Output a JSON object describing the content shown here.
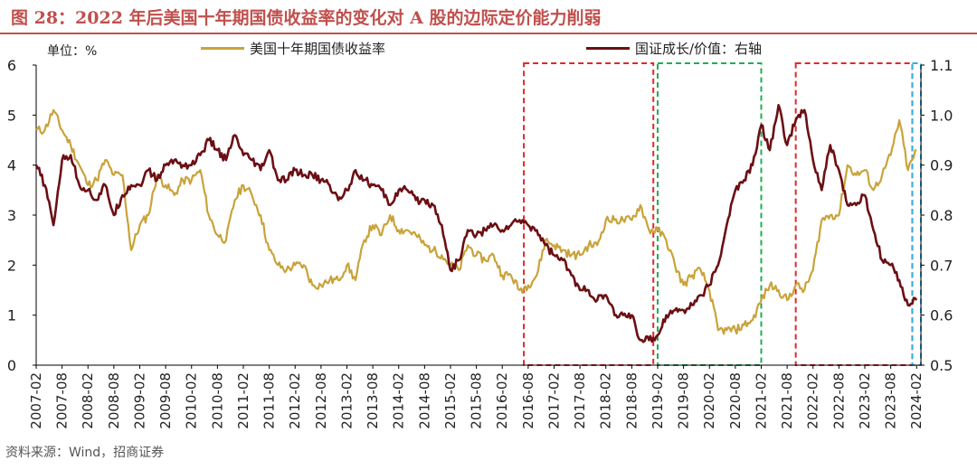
{
  "figure": {
    "title": "图 28：2022 年后美国十年期国债收益率的变化对 A 股的边际定价能力削弱",
    "unit": "单位：%",
    "source": "资料来源：Wind，招商证券"
  },
  "chart_data": {
    "type": "line",
    "x_ticks": [
      "2007-02",
      "2007-08",
      "2008-02",
      "2008-08",
      "2009-02",
      "2009-08",
      "2010-02",
      "2010-08",
      "2011-02",
      "2011-08",
      "2012-02",
      "2012-08",
      "2013-02",
      "2013-08",
      "2014-02",
      "2014-08",
      "2015-02",
      "2015-08",
      "2016-02",
      "2016-08",
      "2017-02",
      "2017-08",
      "2018-02",
      "2018-08",
      "2019-02",
      "2019-08",
      "2020-02",
      "2020-08",
      "2021-02",
      "2021-08",
      "2022-02",
      "2022-08",
      "2023-02",
      "2023-08",
      "2024-02"
    ],
    "y_left": {
      "range": [
        0,
        6
      ],
      "ticks": [
        0,
        1,
        2,
        3,
        4,
        5,
        6
      ]
    },
    "y_right": {
      "range": [
        0.5,
        1.1
      ],
      "ticks": [
        0.5,
        0.6,
        0.7,
        0.8,
        0.9,
        1.0,
        1.1
      ],
      "tick_labels": [
        "0.5",
        "0.6",
        "0.7",
        "0.8",
        "0.9",
        "1.0",
        "1.1"
      ]
    },
    "series": [
      {
        "name": "美国十年期国债收益率",
        "axis": "left",
        "color": "#c9a33a",
        "points": [
          [
            "2007-02",
            4.7
          ],
          [
            "2007-04",
            4.7
          ],
          [
            "2007-06",
            5.1
          ],
          [
            "2007-08",
            4.7
          ],
          [
            "2007-10",
            4.4
          ],
          [
            "2007-12",
            4.0
          ],
          [
            "2008-02",
            3.6
          ],
          [
            "2008-04",
            3.7
          ],
          [
            "2008-06",
            4.1
          ],
          [
            "2008-08",
            3.8
          ],
          [
            "2008-10",
            3.8
          ],
          [
            "2008-12",
            2.3
          ],
          [
            "2009-02",
            2.8
          ],
          [
            "2009-04",
            3.0
          ],
          [
            "2009-06",
            3.8
          ],
          [
            "2009-08",
            3.6
          ],
          [
            "2009-10",
            3.4
          ],
          [
            "2009-12",
            3.7
          ],
          [
            "2010-02",
            3.7
          ],
          [
            "2010-04",
            3.9
          ],
          [
            "2010-06",
            3.0
          ],
          [
            "2010-08",
            2.6
          ],
          [
            "2010-10",
            2.5
          ],
          [
            "2010-12",
            3.3
          ],
          [
            "2011-02",
            3.6
          ],
          [
            "2011-04",
            3.4
          ],
          [
            "2011-06",
            3.0
          ],
          [
            "2011-08",
            2.3
          ],
          [
            "2011-10",
            2.0
          ],
          [
            "2011-12",
            1.9
          ],
          [
            "2012-02",
            2.0
          ],
          [
            "2012-04",
            2.0
          ],
          [
            "2012-06",
            1.6
          ],
          [
            "2012-08",
            1.6
          ],
          [
            "2012-10",
            1.7
          ],
          [
            "2012-12",
            1.7
          ],
          [
            "2013-02",
            2.0
          ],
          [
            "2013-04",
            1.7
          ],
          [
            "2013-06",
            2.5
          ],
          [
            "2013-08",
            2.8
          ],
          [
            "2013-10",
            2.6
          ],
          [
            "2013-12",
            3.0
          ],
          [
            "2014-02",
            2.7
          ],
          [
            "2014-04",
            2.7
          ],
          [
            "2014-06",
            2.6
          ],
          [
            "2014-08",
            2.4
          ],
          [
            "2014-10",
            2.3
          ],
          [
            "2014-12",
            2.2
          ],
          [
            "2015-02",
            2.0
          ],
          [
            "2015-04",
            1.9
          ],
          [
            "2015-06",
            2.4
          ],
          [
            "2015-08",
            2.2
          ],
          [
            "2015-10",
            2.1
          ],
          [
            "2015-12",
            2.2
          ],
          [
            "2016-02",
            1.8
          ],
          [
            "2016-04",
            1.8
          ],
          [
            "2016-06",
            1.5
          ],
          [
            "2016-08",
            1.6
          ],
          [
            "2016-10",
            1.8
          ],
          [
            "2016-12",
            2.5
          ],
          [
            "2017-02",
            2.4
          ],
          [
            "2017-04",
            2.3
          ],
          [
            "2017-06",
            2.2
          ],
          [
            "2017-08",
            2.2
          ],
          [
            "2017-10",
            2.4
          ],
          [
            "2017-12",
            2.4
          ],
          [
            "2018-02",
            2.9
          ],
          [
            "2018-04",
            2.9
          ],
          [
            "2018-06",
            2.9
          ],
          [
            "2018-08",
            2.9
          ],
          [
            "2018-10",
            3.2
          ],
          [
            "2018-12",
            2.7
          ],
          [
            "2019-02",
            2.7
          ],
          [
            "2019-04",
            2.5
          ],
          [
            "2019-06",
            2.0
          ],
          [
            "2019-08",
            1.6
          ],
          [
            "2019-10",
            1.8
          ],
          [
            "2019-12",
            1.9
          ],
          [
            "2020-02",
            1.5
          ],
          [
            "2020-04",
            0.7
          ],
          [
            "2020-06",
            0.7
          ],
          [
            "2020-08",
            0.7
          ],
          [
            "2020-10",
            0.8
          ],
          [
            "2020-12",
            0.9
          ],
          [
            "2021-02",
            1.3
          ],
          [
            "2021-04",
            1.6
          ],
          [
            "2021-06",
            1.5
          ],
          [
            "2021-08",
            1.3
          ],
          [
            "2021-10",
            1.6
          ],
          [
            "2021-12",
            1.5
          ],
          [
            "2022-02",
            1.9
          ],
          [
            "2022-04",
            2.9
          ],
          [
            "2022-06",
            3.0
          ],
          [
            "2022-08",
            3.0
          ],
          [
            "2022-10",
            4.0
          ],
          [
            "2022-12",
            3.8
          ],
          [
            "2023-02",
            3.9
          ],
          [
            "2023-04",
            3.5
          ],
          [
            "2023-06",
            3.8
          ],
          [
            "2023-08",
            4.2
          ],
          [
            "2023-10",
            4.9
          ],
          [
            "2023-12",
            3.9
          ],
          [
            "2024-02",
            4.3
          ]
        ]
      },
      {
        "name": "国证成长/价值：右轴",
        "axis": "right",
        "color": "#6b0f14",
        "points": [
          [
            "2007-02",
            0.9
          ],
          [
            "2007-04",
            0.86
          ],
          [
            "2007-06",
            0.78
          ],
          [
            "2007-08",
            0.91
          ],
          [
            "2007-10",
            0.92
          ],
          [
            "2007-12",
            0.86
          ],
          [
            "2008-02",
            0.85
          ],
          [
            "2008-04",
            0.83
          ],
          [
            "2008-06",
            0.86
          ],
          [
            "2008-08",
            0.8
          ],
          [
            "2008-10",
            0.84
          ],
          [
            "2008-12",
            0.86
          ],
          [
            "2009-02",
            0.86
          ],
          [
            "2009-04",
            0.89
          ],
          [
            "2009-06",
            0.87
          ],
          [
            "2009-08",
            0.9
          ],
          [
            "2009-10",
            0.91
          ],
          [
            "2009-12",
            0.9
          ],
          [
            "2010-02",
            0.9
          ],
          [
            "2010-04",
            0.92
          ],
          [
            "2010-06",
            0.95
          ],
          [
            "2010-08",
            0.93
          ],
          [
            "2010-10",
            0.91
          ],
          [
            "2010-12",
            0.96
          ],
          [
            "2011-02",
            0.92
          ],
          [
            "2011-04",
            0.91
          ],
          [
            "2011-06",
            0.89
          ],
          [
            "2011-08",
            0.93
          ],
          [
            "2011-10",
            0.87
          ],
          [
            "2011-12",
            0.87
          ],
          [
            "2012-02",
            0.89
          ],
          [
            "2012-04",
            0.88
          ],
          [
            "2012-06",
            0.88
          ],
          [
            "2012-08",
            0.87
          ],
          [
            "2012-10",
            0.86
          ],
          [
            "2012-12",
            0.83
          ],
          [
            "2013-02",
            0.85
          ],
          [
            "2013-04",
            0.89
          ],
          [
            "2013-06",
            0.87
          ],
          [
            "2013-08",
            0.86
          ],
          [
            "2013-10",
            0.85
          ],
          [
            "2013-12",
            0.82
          ],
          [
            "2014-02",
            0.85
          ],
          [
            "2014-04",
            0.85
          ],
          [
            "2014-06",
            0.83
          ],
          [
            "2014-08",
            0.83
          ],
          [
            "2014-10",
            0.82
          ],
          [
            "2014-12",
            0.78
          ],
          [
            "2015-02",
            0.69
          ],
          [
            "2015-04",
            0.71
          ],
          [
            "2015-06",
            0.77
          ],
          [
            "2015-08",
            0.76
          ],
          [
            "2015-10",
            0.77
          ],
          [
            "2015-12",
            0.78
          ],
          [
            "2016-02",
            0.77
          ],
          [
            "2016-04",
            0.78
          ],
          [
            "2016-06",
            0.79
          ],
          [
            "2016-08",
            0.78
          ],
          [
            "2016-10",
            0.77
          ],
          [
            "2016-12",
            0.74
          ],
          [
            "2017-02",
            0.72
          ],
          [
            "2017-04",
            0.71
          ],
          [
            "2017-06",
            0.68
          ],
          [
            "2017-08",
            0.65
          ],
          [
            "2017-10",
            0.65
          ],
          [
            "2017-12",
            0.63
          ],
          [
            "2018-02",
            0.64
          ],
          [
            "2018-04",
            0.6
          ],
          [
            "2018-06",
            0.6
          ],
          [
            "2018-08",
            0.6
          ],
          [
            "2018-10",
            0.55
          ],
          [
            "2018-12",
            0.55
          ],
          [
            "2019-02",
            0.56
          ],
          [
            "2019-04",
            0.6
          ],
          [
            "2019-06",
            0.61
          ],
          [
            "2019-08",
            0.61
          ],
          [
            "2019-10",
            0.62
          ],
          [
            "2019-12",
            0.64
          ],
          [
            "2020-02",
            0.66
          ],
          [
            "2020-04",
            0.7
          ],
          [
            "2020-06",
            0.78
          ],
          [
            "2020-08",
            0.85
          ],
          [
            "2020-10",
            0.87
          ],
          [
            "2020-12",
            0.9
          ],
          [
            "2021-02",
            0.98
          ],
          [
            "2021-04",
            0.93
          ],
          [
            "2021-06",
            1.02
          ],
          [
            "2021-08",
            0.94
          ],
          [
            "2021-10",
            0.99
          ],
          [
            "2021-12",
            1.01
          ],
          [
            "2022-02",
            0.91
          ],
          [
            "2022-04",
            0.85
          ],
          [
            "2022-06",
            0.94
          ],
          [
            "2022-08",
            0.89
          ],
          [
            "2022-10",
            0.82
          ],
          [
            "2022-12",
            0.82
          ],
          [
            "2023-02",
            0.84
          ],
          [
            "2023-04",
            0.77
          ],
          [
            "2023-06",
            0.71
          ],
          [
            "2023-08",
            0.7
          ],
          [
            "2023-10",
            0.67
          ],
          [
            "2023-12",
            0.62
          ],
          [
            "2024-02",
            0.63
          ]
        ]
      }
    ],
    "highlight_boxes": [
      {
        "from": "2016-07",
        "to": "2019-01",
        "color": "#e02828"
      },
      {
        "from": "2019-02",
        "to": "2021-02",
        "color": "#1fae55"
      },
      {
        "from": "2021-10",
        "to": "2024-01",
        "color": "#e02828"
      },
      {
        "from": "2024-01",
        "to": "2024-03",
        "color": "#2eaee0"
      }
    ]
  }
}
